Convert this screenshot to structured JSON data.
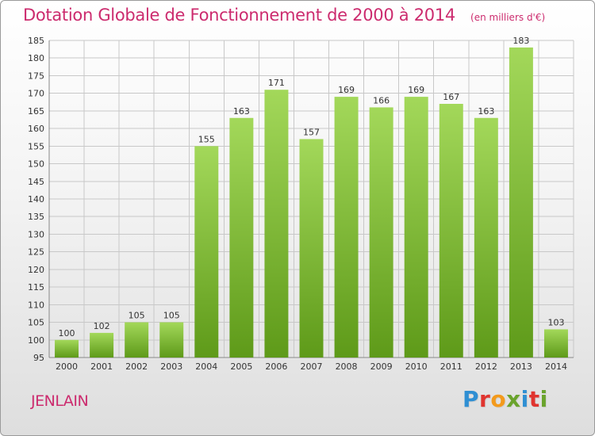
{
  "header": {
    "title": "Dotation Globale de Fonctionnement de 2000 à 2014",
    "unit": "(en milliers d'€)"
  },
  "footer": {
    "location": "JENLAIN",
    "logo_text": "Proxiti",
    "logo_colors": [
      "#2f8fd3",
      "#e0342f",
      "#f39a1c",
      "#6aa32c",
      "#2f8fd3",
      "#e0342f",
      "#6aa32c"
    ]
  },
  "colors": {
    "accent": "#cc2b6e",
    "bar_light": "#a3d85a",
    "bar_dark": "#5e9a19",
    "grid": "#c8c8c8"
  },
  "chart_data": {
    "type": "bar",
    "title": "Dotation Globale de Fonctionnement de 2000 à 2014",
    "subtitle": "(en milliers d'€)",
    "xlabel": "",
    "ylabel": "",
    "categories": [
      "2000",
      "2001",
      "2002",
      "2003",
      "2004",
      "2005",
      "2006",
      "2007",
      "2008",
      "2009",
      "2010",
      "2011",
      "2012",
      "2013",
      "2014"
    ],
    "values": [
      100,
      102,
      105,
      105,
      155,
      163,
      171,
      157,
      169,
      166,
      169,
      167,
      163,
      183,
      103
    ],
    "ylim": [
      95,
      185
    ],
    "yticks": [
      95,
      100,
      105,
      110,
      115,
      120,
      125,
      130,
      135,
      140,
      145,
      150,
      155,
      160,
      165,
      170,
      175,
      180,
      185
    ],
    "grid": true,
    "data_labels": true
  }
}
